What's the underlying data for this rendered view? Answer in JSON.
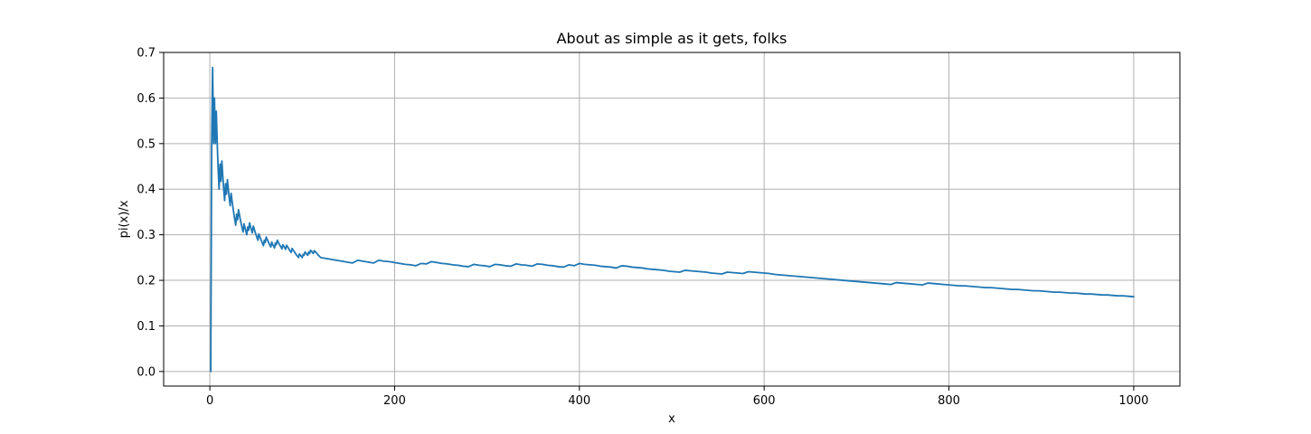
{
  "chart_data": {
    "type": "line",
    "title": "About as simple as it gets, folks",
    "xlabel": "x",
    "ylabel": "pi(x)/x",
    "xlim": [
      -50,
      1050
    ],
    "ylim": [
      -0.032,
      0.7
    ],
    "xticks": [
      0,
      200,
      400,
      600,
      800,
      1000
    ],
    "yticks": [
      0.0,
      0.1,
      0.2,
      0.3,
      0.4,
      0.5,
      0.6,
      0.7
    ],
    "xtick_labels": [
      "0",
      "200",
      "400",
      "600",
      "800",
      "1000"
    ],
    "ytick_labels": [
      "0.0",
      "0.1",
      "0.2",
      "0.3",
      "0.4",
      "0.5",
      "0.6",
      "0.7"
    ],
    "grid": true,
    "color": "#1f77b4",
    "series": [
      {
        "x_start": 1,
        "x_end": 1000,
        "y": [
          0.0,
          0.5,
          0.667,
          0.5,
          0.6,
          0.5,
          0.571,
          0.5,
          0.444,
          0.4,
          0.455,
          0.417,
          0.462,
          0.429,
          0.4,
          0.375,
          0.412,
          0.389,
          0.421,
          0.4,
          0.381,
          0.364,
          0.391,
          0.375,
          0.36,
          0.346,
          0.333,
          0.321,
          0.345,
          0.333,
          0.355,
          0.344,
          0.333,
          0.324,
          0.314,
          0.306,
          0.324,
          0.316,
          0.308,
          0.3,
          0.317,
          0.31,
          0.326,
          0.318,
          0.311,
          0.304,
          0.319,
          0.313,
          0.306,
          0.3,
          0.294,
          0.288,
          0.302,
          0.296,
          0.291,
          0.286,
          0.281,
          0.276,
          0.288,
          0.283,
          0.295,
          0.29,
          0.286,
          0.281,
          0.277,
          0.273,
          0.284,
          0.279,
          0.275,
          0.271,
          0.282,
          0.278,
          0.288,
          0.284,
          0.28,
          0.276,
          0.273,
          0.269,
          0.278,
          0.275,
          0.272,
          0.268,
          0.277,
          0.274,
          0.271,
          0.267,
          0.264,
          0.261,
          0.27,
          0.267,
          0.264,
          0.261,
          0.258,
          0.255,
          0.253,
          0.25,
          0.258,
          0.255,
          0.253,
          0.25,
          0.257,
          0.255,
          0.262,
          0.26,
          0.257,
          0.255,
          0.262,
          0.259,
          0.266,
          0.264,
          0.261,
          0.259,
          0.265,
          0.263,
          0.261,
          0.259,
          0.256,
          0.254,
          0.252,
          0.25,
          0.248,
          0.246,
          0.244,
          0.242,
          0.24,
          0.238,
          0.244,
          0.242,
          0.24,
          0.238,
          0.244,
          0.242,
          0.241,
          0.239,
          0.237,
          0.235,
          0.234,
          0.232,
          0.237,
          0.236,
          0.241,
          0.239,
          0.237,
          0.236,
          0.234,
          0.233,
          0.231,
          0.23,
          0.235,
          0.233,
          0.232,
          0.23,
          0.235,
          0.234,
          0.232,
          0.231,
          0.236,
          0.234,
          0.233,
          0.231,
          0.236,
          0.235,
          0.233,
          0.232,
          0.23,
          0.229,
          0.234,
          0.232,
          0.237,
          0.235,
          0.234,
          0.233,
          0.231,
          0.23,
          0.229,
          0.227,
          0.232,
          0.231,
          0.229,
          0.228,
          0.227,
          0.225,
          0.224,
          0.223,
          0.222,
          0.22,
          0.219,
          0.218,
          0.222,
          0.221,
          0.22,
          0.219,
          0.218,
          0.216,
          0.215,
          0.214,
          0.218,
          0.217,
          0.216,
          0.215,
          0.219,
          0.218,
          0.217,
          0.216,
          0.215,
          0.213,
          0.212,
          0.211,
          0.21,
          0.209,
          0.208,
          0.207,
          0.206,
          0.205,
          0.204,
          0.203,
          0.202,
          0.201,
          0.2,
          0.199,
          0.198,
          0.197,
          0.196,
          0.195,
          0.194,
          0.193,
          0.192,
          0.191,
          0.195,
          0.194,
          0.193,
          0.192,
          0.191,
          0.19,
          0.194,
          0.193,
          0.192,
          0.191,
          0.19,
          0.189,
          0.188,
          0.188,
          0.187,
          0.186,
          0.185,
          0.184,
          0.184,
          0.183,
          0.182,
          0.181,
          0.18,
          0.18,
          0.179,
          0.178,
          0.177,
          0.177,
          0.176,
          0.175,
          0.174,
          0.174,
          0.173,
          0.172,
          0.172,
          0.171,
          0.17,
          0.17,
          0.169,
          0.168,
          0.168,
          0.167,
          0.166,
          0.166,
          0.165,
          0.164
        ]
      }
    ]
  }
}
